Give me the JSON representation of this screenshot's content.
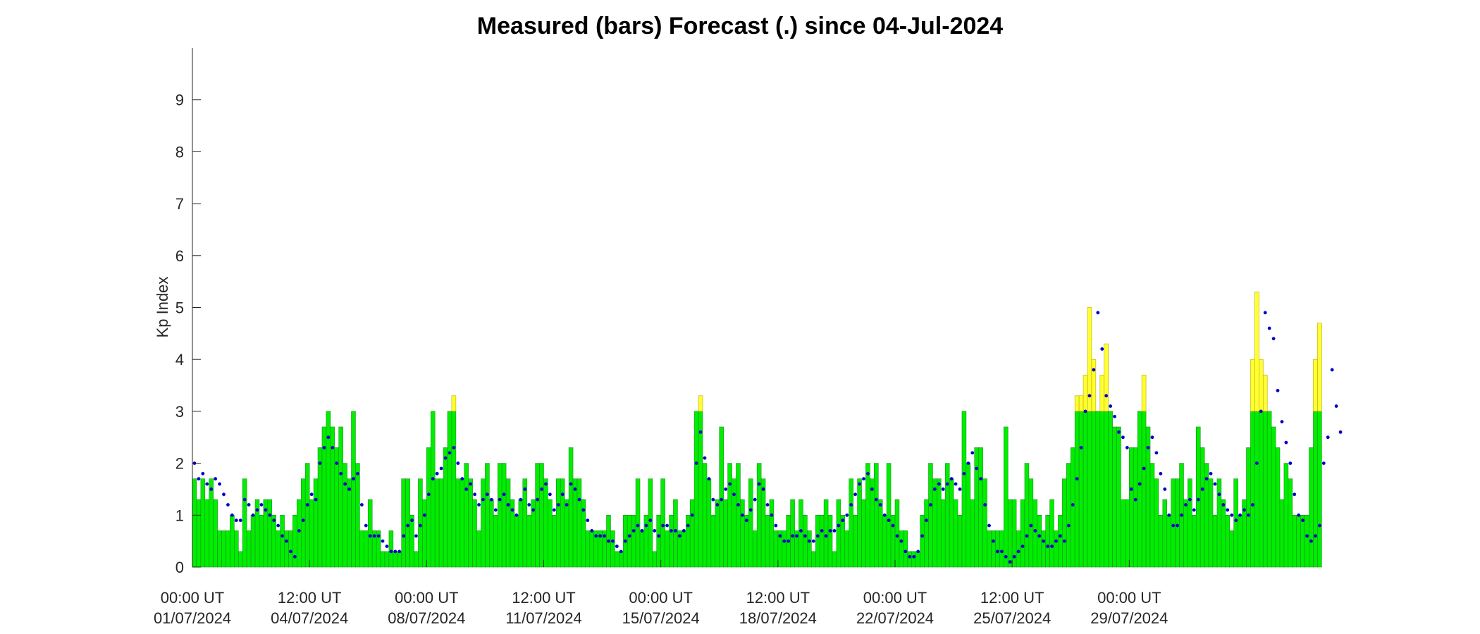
{
  "chart_data": {
    "type": "bar",
    "title": "Measured (bars) Forecast (.) since 04-Jul-2024",
    "xlabel": "",
    "ylabel": "Kp Index",
    "ylim": [
      0,
      10
    ],
    "yticks": [
      0,
      1,
      2,
      3,
      4,
      5,
      6,
      7,
      8,
      9
    ],
    "x_ticks": [
      {
        "line1": "00:00 UT",
        "line2": "01/07/2024"
      },
      {
        "line1": "12:00 UT",
        "line2": "04/07/2024"
      },
      {
        "line1": "00:00 UT",
        "line2": "08/07/2024"
      },
      {
        "line1": "12:00 UT",
        "line2": "11/07/2024"
      },
      {
        "line1": "00:00 UT",
        "line2": "15/07/2024"
      },
      {
        "line1": "12:00 UT",
        "line2": "18/07/2024"
      },
      {
        "line1": "00:00 UT",
        "line2": "22/07/2024"
      },
      {
        "line1": "12:00 UT",
        "line2": "25/07/2024"
      },
      {
        "line1": "00:00 UT",
        "line2": "29/07/2024"
      }
    ],
    "x_start": "01/07/2024 00:00 UT",
    "interval_hours": 3,
    "colors": {
      "measured_quiet": "#00ee00",
      "measured_active": "#ffff33",
      "bar_edge": "#228B22",
      "forecast": "#0000cc"
    },
    "threshold": 3,
    "series": [
      {
        "name": "Measured",
        "style": "bars",
        "values": [
          1.7,
          1.3,
          1.7,
          1.3,
          1.7,
          1.3,
          0.7,
          0.7,
          0.7,
          1.0,
          0.7,
          0.3,
          1.7,
          0.7,
          1.0,
          1.3,
          1.0,
          1.3,
          1.3,
          1.0,
          0.7,
          1.0,
          0.7,
          0.7,
          1.0,
          1.3,
          1.7,
          2.0,
          1.3,
          1.7,
          2.3,
          2.7,
          3.0,
          2.7,
          2.3,
          2.7,
          2.0,
          1.7,
          3.0,
          2.0,
          0.7,
          0.7,
          1.3,
          0.7,
          0.7,
          0.3,
          0.3,
          0.7,
          0.3,
          0.3,
          1.7,
          1.7,
          1.0,
          0.3,
          1.7,
          1.3,
          2.3,
          3.0,
          1.7,
          1.7,
          2.3,
          3.0,
          3.3,
          1.7,
          1.7,
          2.0,
          1.7,
          1.3,
          0.7,
          1.7,
          2.0,
          1.3,
          1.0,
          2.0,
          2.0,
          1.7,
          1.3,
          1.0,
          1.3,
          1.7,
          1.0,
          1.3,
          2.0,
          2.0,
          1.7,
          1.3,
          1.0,
          1.7,
          1.7,
          1.3,
          2.3,
          1.7,
          1.7,
          1.3,
          0.7,
          0.7,
          0.7,
          0.7,
          0.7,
          1.0,
          0.7,
          0.3,
          0.3,
          1.0,
          1.0,
          1.0,
          1.7,
          0.7,
          1.0,
          1.7,
          0.3,
          1.0,
          1.7,
          0.7,
          1.0,
          1.3,
          0.7,
          0.7,
          1.0,
          1.3,
          3.0,
          3.3,
          2.0,
          1.7,
          1.0,
          1.3,
          2.7,
          1.3,
          2.0,
          1.7,
          2.0,
          1.3,
          1.0,
          1.7,
          0.7,
          2.0,
          1.7,
          1.0,
          1.3,
          0.7,
          0.7,
          0.7,
          1.0,
          1.3,
          0.7,
          1.3,
          1.0,
          0.7,
          0.3,
          1.0,
          1.0,
          1.3,
          1.0,
          0.3,
          1.3,
          1.0,
          0.7,
          1.7,
          1.0,
          1.7,
          1.3,
          2.0,
          1.7,
          2.0,
          1.3,
          1.0,
          2.0,
          1.0,
          1.3,
          0.7,
          0.7,
          0.3,
          0.3,
          0.3,
          1.0,
          1.3,
          2.0,
          1.7,
          1.7,
          1.3,
          2.0,
          1.7,
          1.3,
          1.0,
          3.0,
          2.0,
          1.3,
          2.3,
          2.3,
          1.7,
          0.7,
          0.7,
          0.7,
          0.7,
          2.7,
          1.3,
          1.3,
          0.7,
          1.3,
          2.0,
          1.7,
          1.3,
          1.0,
          0.7,
          1.0,
          1.3,
          0.7,
          1.0,
          1.7,
          2.0,
          2.3,
          3.3,
          3.3,
          3.7,
          5.0,
          4.0,
          3.0,
          3.7,
          4.3,
          3.0,
          2.7,
          2.7,
          1.3,
          1.3,
          2.3,
          2.3,
          3.0,
          3.7,
          2.7,
          2.0,
          1.7,
          1.0,
          1.3,
          1.0,
          1.7,
          1.7,
          2.0,
          1.3,
          1.7,
          1.0,
          2.7,
          2.3,
          2.0,
          1.7,
          1.0,
          1.7,
          1.3,
          1.0,
          0.7,
          1.7,
          1.0,
          1.3,
          2.3,
          4.0,
          5.3,
          4.0,
          3.7,
          3.0,
          2.7,
          2.3,
          1.3,
          2.0,
          1.7,
          1.0,
          1.0,
          1.0,
          1.0,
          2.3,
          4.0,
          4.7
        ]
      },
      {
        "name": "Forecast",
        "style": "dots",
        "values": [
          2.0,
          1.7,
          1.8,
          1.6,
          1.5,
          1.7,
          1.6,
          1.4,
          1.2,
          1.0,
          0.9,
          0.9,
          1.3,
          1.2,
          1.0,
          1.1,
          1.2,
          1.1,
          1.0,
          0.9,
          0.8,
          0.6,
          0.5,
          0.3,
          0.2,
          0.7,
          0.9,
          1.2,
          1.4,
          1.3,
          2.0,
          2.3,
          2.5,
          2.3,
          2.0,
          1.8,
          1.6,
          1.5,
          1.7,
          1.8,
          1.2,
          0.8,
          0.6,
          0.6,
          0.6,
          0.5,
          0.4,
          0.3,
          0.3,
          0.3,
          0.6,
          0.8,
          0.9,
          0.6,
          0.8,
          1.0,
          1.4,
          1.7,
          1.8,
          1.9,
          2.1,
          2.2,
          2.3,
          2.0,
          1.7,
          1.5,
          1.6,
          1.4,
          1.2,
          1.3,
          1.4,
          1.3,
          1.1,
          1.3,
          1.4,
          1.2,
          1.1,
          1.0,
          1.3,
          1.5,
          1.2,
          1.1,
          1.3,
          1.5,
          1.6,
          1.4,
          1.1,
          1.2,
          1.4,
          1.2,
          1.6,
          1.5,
          1.3,
          1.1,
          0.9,
          0.7,
          0.6,
          0.6,
          0.6,
          0.5,
          0.5,
          0.4,
          0.3,
          0.5,
          0.6,
          0.7,
          0.8,
          0.7,
          0.8,
          0.9,
          0.7,
          0.6,
          0.8,
          0.8,
          0.7,
          0.7,
          0.6,
          0.7,
          0.8,
          1.0,
          2.0,
          2.6,
          2.1,
          1.7,
          1.3,
          1.2,
          1.3,
          1.5,
          1.6,
          1.4,
          1.2,
          1.0,
          0.9,
          1.1,
          1.3,
          1.6,
          1.5,
          1.2,
          1.0,
          0.8,
          0.6,
          0.5,
          0.5,
          0.6,
          0.6,
          0.7,
          0.6,
          0.5,
          0.5,
          0.6,
          0.7,
          0.6,
          0.7,
          0.7,
          0.8,
          0.9,
          1.0,
          1.2,
          1.4,
          1.6,
          1.7,
          1.8,
          1.5,
          1.3,
          1.2,
          1.0,
          0.9,
          0.8,
          0.6,
          0.5,
          0.3,
          0.2,
          0.2,
          0.3,
          0.6,
          0.9,
          1.2,
          1.5,
          1.6,
          1.5,
          1.6,
          1.7,
          1.6,
          1.5,
          1.8,
          2.0,
          2.2,
          1.9,
          1.7,
          1.2,
          0.8,
          0.5,
          0.3,
          0.3,
          0.2,
          0.1,
          0.2,
          0.3,
          0.4,
          0.6,
          0.8,
          0.7,
          0.6,
          0.5,
          0.4,
          0.4,
          0.5,
          0.6,
          0.5,
          0.8,
          1.2,
          1.7,
          2.3,
          3.0,
          3.3,
          3.8,
          4.9,
          4.2,
          3.3,
          3.1,
          2.9,
          2.6,
          2.5,
          2.3,
          1.5,
          1.3,
          1.6,
          1.9,
          2.3,
          2.5,
          2.2,
          1.8,
          1.5,
          1.0,
          0.8,
          0.8,
          1.0,
          1.2,
          1.3,
          1.1,
          1.3,
          1.5,
          1.7,
          1.8,
          1.6,
          1.4,
          1.2,
          1.1,
          1.0,
          0.9,
          1.0,
          1.1,
          1.0,
          1.2,
          2.0,
          3.0,
          4.9,
          4.6,
          4.4,
          3.4,
          2.8,
          2.4,
          2.0,
          1.4,
          1.0,
          0.9,
          0.6,
          0.5,
          0.6,
          0.8,
          2.0,
          2.5,
          3.8,
          3.1,
          2.6
        ]
      }
    ]
  }
}
